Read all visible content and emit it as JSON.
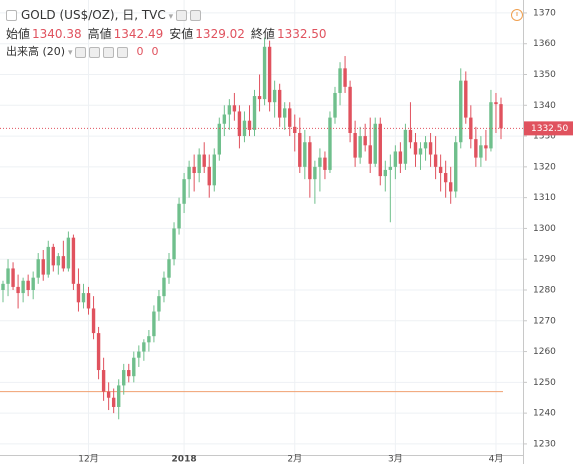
{
  "header": {
    "symbol_line": "GOLD (US$/OZ), 日, TVC",
    "ohlc": [
      {
        "label": "始値",
        "value": "1340.38"
      },
      {
        "label": "高値",
        "value": "1342.49"
      },
      {
        "label": "安値",
        "value": "1329.02"
      },
      {
        "label": "終値",
        "value": "1332.50"
      }
    ],
    "volume_label": "出来高 (20)",
    "volume_values": [
      "0",
      "0"
    ]
  },
  "chart_data": {
    "type": "candlestick",
    "categories": [
      null,
      null,
      null,
      null,
      null,
      null,
      null,
      null,
      null,
      null,
      null,
      null,
      null,
      null,
      null,
      null,
      null,
      "12月",
      null,
      null,
      null,
      null,
      null,
      null,
      null,
      null,
      null,
      null,
      null,
      null,
      null,
      null,
      null,
      null,
      null,
      null,
      "2018",
      null,
      null,
      null,
      null,
      null,
      null,
      null,
      null,
      null,
      null,
      null,
      null,
      null,
      null,
      null,
      null,
      null,
      null,
      null,
      null,
      null,
      "2月",
      null,
      null,
      null,
      null,
      null,
      null,
      null,
      null,
      null,
      null,
      null,
      null,
      null,
      null,
      null,
      null,
      null,
      null,
      null,
      "3月",
      null,
      null,
      null,
      null,
      null,
      null,
      null,
      null,
      null,
      null,
      null,
      null,
      null,
      null,
      null,
      null,
      null,
      null,
      null,
      "4月",
      null
    ],
    "open": [
      1280,
      1282,
      1287,
      1281,
      1279,
      1283,
      1280,
      1284,
      1290,
      1285,
      1294,
      1288,
      1291,
      1287,
      1297,
      1282,
      1276,
      1279,
      1274,
      1266,
      1254,
      1247,
      1245,
      1242,
      1249,
      1254,
      1252,
      1258,
      1260,
      1263,
      1265,
      1273,
      1278,
      1284,
      1290,
      1300,
      1308,
      1316,
      1320,
      1318,
      1324,
      1320,
      1314,
      1324,
      1334,
      1337,
      1340,
      1338,
      1330,
      1335,
      1332,
      1343,
      1342,
      1359,
      1341,
      1345,
      1336,
      1339,
      1333,
      1331,
      1320,
      1328,
      1316,
      1320,
      1323,
      1319,
      1336,
      1344,
      1352,
      1346,
      1331,
      1323,
      1330,
      1327,
      1321,
      1334,
      1317,
      1319,
      1320,
      1325,
      1321,
      1332,
      1328,
      1324,
      1326,
      1328,
      1324,
      1320,
      1318,
      1315,
      1312,
      1328,
      1348,
      1336,
      1329,
      1323,
      1327,
      1326,
      1341,
      1340.38
    ],
    "high": [
      1283,
      1290,
      1289,
      1285,
      1284,
      1285,
      1286,
      1292,
      1293,
      1296,
      1295,
      1292,
      1296,
      1299,
      1298,
      1287,
      1282,
      1281,
      1278,
      1268,
      1258,
      1250,
      1248,
      1251,
      1256,
      1256,
      1260,
      1262,
      1264,
      1267,
      1275,
      1280,
      1286,
      1292,
      1302,
      1310,
      1318,
      1322,
      1324,
      1326,
      1328,
      1324,
      1326,
      1336,
      1340,
      1342,
      1344,
      1340,
      1338,
      1340,
      1345,
      1350,
      1362,
      1361,
      1348,
      1347,
      1341,
      1341,
      1337,
      1336,
      1332,
      1330,
      1322,
      1326,
      1325,
      1338,
      1346,
      1354,
      1356,
      1348,
      1335,
      1333,
      1334,
      1336,
      1336,
      1336,
      1322,
      1324,
      1327,
      1328,
      1334,
      1341,
      1331,
      1328,
      1330,
      1331,
      1330,
      1324,
      1322,
      1320,
      1330,
      1352,
      1351,
      1340,
      1333,
      1330,
      1332,
      1345,
      1344,
      1342.49
    ],
    "low": [
      1276,
      1278,
      1280,
      1274,
      1276,
      1278,
      1277,
      1282,
      1283,
      1284,
      1286,
      1285,
      1286,
      1286,
      1280,
      1273,
      1274,
      1272,
      1264,
      1251,
      1244,
      1241,
      1240,
      1238,
      1246,
      1250,
      1250,
      1255,
      1257,
      1260,
      1263,
      1270,
      1276,
      1282,
      1288,
      1298,
      1305,
      1310,
      1312,
      1315,
      1318,
      1310,
      1312,
      1322,
      1330,
      1332,
      1335,
      1326,
      1328,
      1330,
      1330,
      1338,
      1340,
      1338,
      1336,
      1333,
      1332,
      1330,
      1325,
      1318,
      1316,
      1310,
      1308,
      1312,
      1316,
      1318,
      1334,
      1340,
      1344,
      1328,
      1320,
      1321,
      1325,
      1318,
      1320,
      1314,
      1312,
      1302,
      1316,
      1318,
      1319,
      1326,
      1320,
      1319,
      1322,
      1320,
      1316,
      1312,
      1310,
      1308,
      1310,
      1326,
      1334,
      1326,
      1320,
      1320,
      1322,
      1325,
      1331,
      1329.02
    ],
    "close": [
      1282,
      1287,
      1281,
      1279,
      1283,
      1280,
      1284,
      1290,
      1285,
      1294,
      1288,
      1291,
      1287,
      1297,
      1282,
      1276,
      1279,
      1274,
      1266,
      1254,
      1247,
      1245,
      1242,
      1249,
      1254,
      1252,
      1258,
      1260,
      1263,
      1265,
      1273,
      1278,
      1284,
      1290,
      1300,
      1308,
      1316,
      1320,
      1318,
      1324,
      1320,
      1314,
      1324,
      1334,
      1337,
      1340,
      1338,
      1330,
      1335,
      1332,
      1343,
      1342,
      1359,
      1341,
      1345,
      1336,
      1339,
      1333,
      1331,
      1320,
      1328,
      1316,
      1320,
      1323,
      1319,
      1336,
      1344,
      1352,
      1346,
      1331,
      1323,
      1330,
      1327,
      1321,
      1334,
      1317,
      1319,
      1320,
      1325,
      1321,
      1332,
      1328,
      1324,
      1326,
      1328,
      1324,
      1320,
      1318,
      1315,
      1312,
      1328,
      1348,
      1336,
      1329,
      1323,
      1327,
      1326,
      1341,
      1340.38,
      1332.5
    ],
    "up_color": "#6fbf8c",
    "down_color": "#e0525e",
    "ylim": [
      1226.4,
      1374.2
    ],
    "yticks": [
      1230,
      1240,
      1250,
      1260,
      1270,
      1280,
      1290,
      1300,
      1310,
      1320,
      1330,
      1340,
      1350,
      1360,
      1370
    ],
    "grid": true,
    "price_line": {
      "value": 1332.5,
      "label": "1332.50",
      "color": "#e0525e"
    },
    "hline": {
      "value": 1247,
      "color": "#f0a070"
    }
  }
}
